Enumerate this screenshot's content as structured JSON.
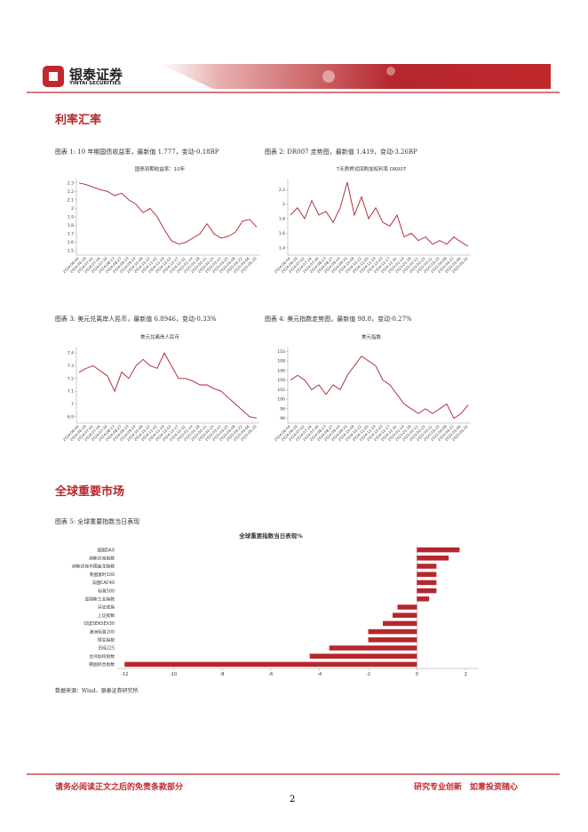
{
  "header": {
    "brand": "银泰证券",
    "brand_en": "YINTAI SECURITIES"
  },
  "sections": [
    "利率汇率",
    "全球重要市场"
  ],
  "captions": [
    "图表 1: 10 年期国债收益率，最新值 1.777，变动-0.18BP",
    "图表 2: DR007 走势图，最新值 1.419，变动-3.26BP",
    "图表 3: 美元兑离岸人民币，最新值 6.8946，变动-0.33%",
    "图表 4: 美元指数走势图，最新值 98.8，变动-0.27%",
    "图表 5: 全球重要指数当日表现"
  ],
  "source": "数据来源：Wind、银泰证券研究所",
  "footer": {
    "left": "请务必阅读正文之后的免责条款部分",
    "right": "研究专业创新　如意投资随心",
    "page": "2"
  },
  "chart_data": [
    {
      "type": "line",
      "title": "国债到期收益率：10年",
      "color": "#a8202a",
      "categories": [
        "2024-06-04",
        "2024-06-18",
        "2024-07-02",
        "2024-07-16",
        "2024-07-30",
        "2024-08-13",
        "2024-08-27",
        "2024-09-10",
        "2024-09-24",
        "2024-10-08",
        "2024-10-22",
        "2024-11-05",
        "2024-11-19",
        "2024-12-03",
        "2024-12-17",
        "2024-12-31",
        "2025-01-14",
        "2025-01-28",
        "2025-02-11",
        "2025-02-25",
        "2025-03-11",
        "2025-03-25",
        "2025-04-08",
        "2025-04-22",
        "2025-05-06",
        "2025-05-20"
      ],
      "values": [
        2.3,
        2.28,
        2.25,
        2.22,
        2.2,
        2.15,
        2.18,
        2.1,
        2.05,
        1.95,
        2.0,
        1.9,
        1.75,
        1.62,
        1.58,
        1.6,
        1.65,
        1.7,
        1.82,
        1.7,
        1.65,
        1.67,
        1.72,
        1.85,
        1.87,
        1.78
      ],
      "ylim": [
        1.45,
        2.35
      ],
      "yticks": [
        1.5,
        1.6,
        1.7,
        1.8,
        1.9,
        2,
        2.1,
        2.2,
        2.3
      ]
    },
    {
      "type": "line",
      "title": "7天质押式回购加权利率 DR007",
      "color": "#a8202a",
      "categories": [
        "2024-06-04",
        "2024-06-18",
        "2024-07-02",
        "2024-07-16",
        "2024-07-30",
        "2024-08-13",
        "2024-08-27",
        "2024-09-10",
        "2024-09-24",
        "2024-10-08",
        "2024-10-22",
        "2024-11-05",
        "2024-11-19",
        "2024-12-03",
        "2024-12-17",
        "2024-12-31",
        "2025-01-14",
        "2025-01-28",
        "2025-02-11",
        "2025-02-25",
        "2025-03-11",
        "2025-03-25",
        "2025-04-08",
        "2025-04-22",
        "2025-05-06",
        "2025-05-20"
      ],
      "values": [
        1.85,
        1.95,
        1.8,
        2.05,
        1.85,
        1.9,
        1.75,
        1.95,
        2.3,
        1.85,
        2.1,
        1.8,
        1.95,
        1.75,
        1.7,
        1.85,
        1.55,
        1.6,
        1.5,
        1.55,
        1.45,
        1.5,
        1.45,
        1.55,
        1.48,
        1.42
      ],
      "ylim": [
        1.3,
        2.35
      ],
      "yticks": [
        1.4,
        1.6,
        1.8,
        2,
        2.2
      ]
    },
    {
      "type": "line",
      "title": "美元兑离岸人民币",
      "color": "#a8202a",
      "categories": [
        "2024-06-04",
        "2024-06-18",
        "2024-07-02",
        "2024-07-16",
        "2024-07-30",
        "2024-08-13",
        "2024-08-27",
        "2024-09-10",
        "2024-09-24",
        "2024-10-08",
        "2024-10-22",
        "2024-11-05",
        "2024-11-19",
        "2024-12-03",
        "2024-12-17",
        "2024-12-31",
        "2025-01-14",
        "2025-01-28",
        "2025-02-11",
        "2025-02-25",
        "2025-03-11",
        "2025-03-25",
        "2025-04-08",
        "2025-04-22",
        "2025-05-06",
        "2025-05-20"
      ],
      "values": [
        7.25,
        7.28,
        7.3,
        7.26,
        7.22,
        7.1,
        7.25,
        7.2,
        7.3,
        7.35,
        7.3,
        7.28,
        7.4,
        7.3,
        7.2,
        7.2,
        7.18,
        7.15,
        7.15,
        7.12,
        7.1,
        7.05,
        7.0,
        6.95,
        6.9,
        6.89
      ],
      "ylim": [
        6.85,
        7.45
      ],
      "yticks": [
        6.9,
        7,
        7.1,
        7.2,
        7.3,
        7.4
      ]
    },
    {
      "type": "line",
      "title": "美元指数",
      "color": "#a8202a",
      "categories": [
        "2024-06-04",
        "2024-06-18",
        "2024-07-02",
        "2024-07-16",
        "2024-07-30",
        "2024-08-13",
        "2024-08-27",
        "2024-09-10",
        "2024-09-24",
        "2024-10-08",
        "2024-10-22",
        "2024-11-05",
        "2024-11-19",
        "2024-12-03",
        "2024-12-17",
        "2024-12-31",
        "2025-01-14",
        "2025-01-28",
        "2025-02-11",
        "2025-02-25",
        "2025-03-11",
        "2025-03-25",
        "2025-04-08",
        "2025-04-22",
        "2025-05-06",
        "2025-05-20"
      ],
      "values": [
        104,
        105,
        104,
        102,
        103,
        101,
        103,
        102,
        105,
        107,
        109,
        108,
        107,
        104,
        103,
        101,
        99,
        98,
        97,
        98,
        97,
        98,
        99,
        96,
        97,
        98.8
      ],
      "ylim": [
        95,
        111
      ],
      "yticks": [
        96,
        98,
        100,
        102,
        104,
        106,
        108,
        110
      ]
    },
    {
      "type": "barh",
      "title": "全球重要指数当日表现%",
      "color": "#b5272d",
      "categories": [
        "德国DAX",
        "纳斯达克指数",
        "纳斯达克中国金龙指数",
        "英国富时100",
        "法国CAC40",
        "标普500",
        "道琼斯工业指数",
        "深证成指",
        "上证指数",
        "印度SENSEX30",
        "澳洲标普200",
        "恒生指数",
        "日经225",
        "台湾加权指数",
        "韩国综合指数"
      ],
      "values": [
        1.75,
        1.3,
        0.8,
        0.8,
        0.8,
        0.8,
        0.5,
        -0.8,
        -1.0,
        -1.4,
        -2.0,
        -2.0,
        -3.6,
        -4.4,
        -12.0
      ],
      "xlim": [
        -12.3,
        2.5
      ],
      "xticks": [
        -12,
        -10,
        -8,
        -6,
        -4,
        -2,
        0,
        2
      ]
    }
  ]
}
